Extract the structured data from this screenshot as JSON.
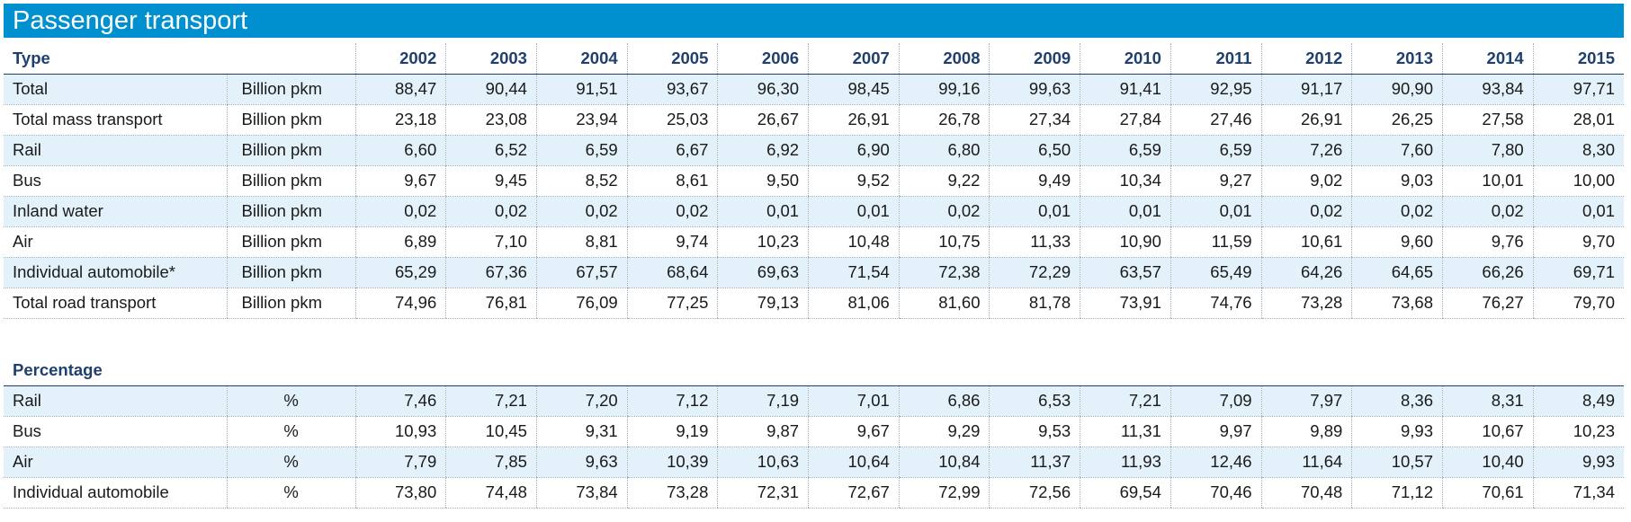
{
  "title": "Passenger transport",
  "header": {
    "type_label": "Type",
    "years": [
      "2002",
      "2003",
      "2004",
      "2005",
      "2006",
      "2007",
      "2008",
      "2009",
      "2010",
      "2011",
      "2012",
      "2013",
      "2014",
      "2015"
    ]
  },
  "rows": [
    {
      "label": "Total",
      "unit": "Billion pkm",
      "values": [
        "88,47",
        "90,44",
        "91,51",
        "93,67",
        "96,30",
        "98,45",
        "99,16",
        "99,63",
        "91,41",
        "92,95",
        "91,17",
        "90,90",
        "93,84",
        "97,71"
      ]
    },
    {
      "label": "Total mass transport",
      "unit": "Billion pkm",
      "values": [
        "23,18",
        "23,08",
        "23,94",
        "25,03",
        "26,67",
        "26,91",
        "26,78",
        "27,34",
        "27,84",
        "27,46",
        "26,91",
        "26,25",
        "27,58",
        "28,01"
      ]
    },
    {
      "label": "Rail",
      "unit": "Billion pkm",
      "values": [
        "6,60",
        "6,52",
        "6,59",
        "6,67",
        "6,92",
        "6,90",
        "6,80",
        "6,50",
        "6,59",
        "6,59",
        "7,26",
        "7,60",
        "7,80",
        "8,30"
      ]
    },
    {
      "label": "Bus",
      "unit": "Billion pkm",
      "values": [
        "9,67",
        "9,45",
        "8,52",
        "8,61",
        "9,50",
        "9,52",
        "9,22",
        "9,49",
        "10,34",
        "9,27",
        "9,02",
        "9,03",
        "10,01",
        "10,00"
      ]
    },
    {
      "label": "Inland water",
      "unit": "Billion pkm",
      "values": [
        "0,02",
        "0,02",
        "0,02",
        "0,02",
        "0,01",
        "0,01",
        "0,02",
        "0,01",
        "0,01",
        "0,01",
        "0,02",
        "0,02",
        "0,02",
        "0,01"
      ]
    },
    {
      "label": "Air",
      "unit": "Billion pkm",
      "values": [
        "6,89",
        "7,10",
        "8,81",
        "9,74",
        "10,23",
        "10,48",
        "10,75",
        "11,33",
        "10,90",
        "11,59",
        "10,61",
        "9,60",
        "9,76",
        "9,70"
      ]
    },
    {
      "label": "Individual automobile*",
      "unit": "Billion pkm",
      "values": [
        "65,29",
        "67,36",
        "67,57",
        "68,64",
        "69,63",
        "71,54",
        "72,38",
        "72,29",
        "63,57",
        "65,49",
        "64,26",
        "64,65",
        "66,26",
        "69,71"
      ]
    },
    {
      "label": "Total road transport",
      "unit": "Billion pkm",
      "values": [
        "74,96",
        "76,81",
        "76,09",
        "77,25",
        "79,13",
        "81,06",
        "81,60",
        "81,78",
        "73,91",
        "74,76",
        "73,28",
        "73,68",
        "76,27",
        "79,70"
      ]
    }
  ],
  "percentage": {
    "heading": "Percentage",
    "rows": [
      {
        "label": "Rail",
        "unit": "%",
        "values": [
          "7,46",
          "7,21",
          "7,20",
          "7,12",
          "7,19",
          "7,01",
          "6,86",
          "6,53",
          "7,21",
          "7,09",
          "7,97",
          "8,36",
          "8,31",
          "8,49"
        ]
      },
      {
        "label": "Bus",
        "unit": "%",
        "values": [
          "10,93",
          "10,45",
          "9,31",
          "9,19",
          "9,87",
          "9,67",
          "9,29",
          "9,53",
          "11,31",
          "9,97",
          "9,89",
          "9,93",
          "10,67",
          "10,23"
        ]
      },
      {
        "label": "Air",
        "unit": "%",
        "values": [
          "7,79",
          "7,85",
          "9,63",
          "10,39",
          "10,63",
          "10,64",
          "10,84",
          "11,37",
          "11,93",
          "12,46",
          "11,64",
          "10,57",
          "10,40",
          "9,93"
        ]
      },
      {
        "label": "Individual automobile",
        "unit": "%",
        "values": [
          "73,80",
          "74,48",
          "73,84",
          "73,28",
          "72,31",
          "72,67",
          "72,99",
          "72,56",
          "69,54",
          "70,46",
          "70,48",
          "71,12",
          "70,61",
          "71,34"
        ]
      }
    ]
  },
  "colors": {
    "title_bar": "#0090d0",
    "header_text": "#1f3f6e",
    "row_shade": "#e3f1fa"
  }
}
